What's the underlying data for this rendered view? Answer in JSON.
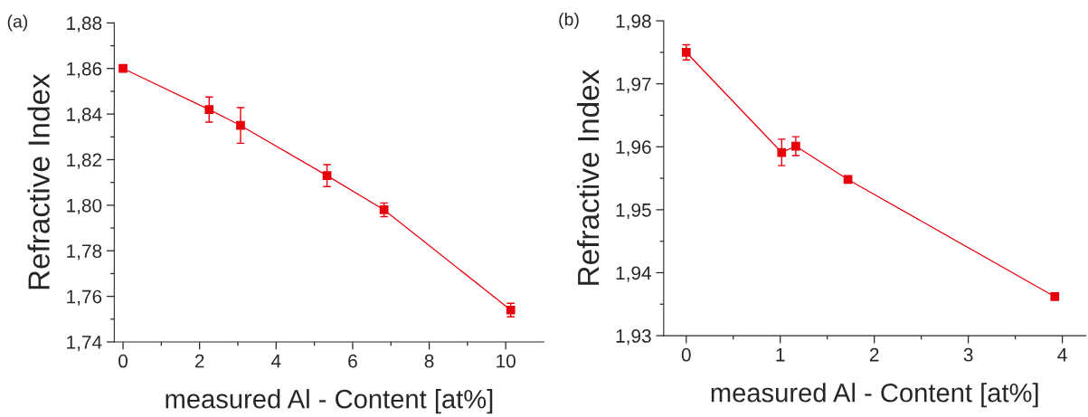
{
  "chart_data": [
    {
      "type": "line",
      "title": "(a)",
      "xlabel": "measured Al - Content [at%]",
      "ylabel": "Refractive Index",
      "marker": "square",
      "line_style": "solid",
      "grid": false,
      "legend": false,
      "series": [
        {
          "color": "#e8000b",
          "x": [
            0,
            2.25,
            3.07,
            5.33,
            6.82,
            10.13
          ],
          "values": [
            1.86,
            1.842,
            1.835,
            1.813,
            1.798,
            1.754
          ],
          "errors": [
            0.001,
            0.0055,
            0.0078,
            0.0048,
            0.003,
            0.003
          ]
        }
      ],
      "xlim": [
        -0.23,
        11.0
      ],
      "xticks": [
        0,
        2,
        4,
        6,
        8,
        10
      ],
      "ylim": [
        1.74,
        1.88
      ],
      "yticks": [
        {
          "value": 1.74,
          "label": "1,74"
        },
        {
          "value": 1.76,
          "label": "1,76"
        },
        {
          "value": 1.78,
          "label": "1,78"
        },
        {
          "value": 1.8,
          "label": "1,80"
        },
        {
          "value": 1.82,
          "label": "1,82"
        },
        {
          "value": 1.84,
          "label": "1,84"
        },
        {
          "value": 1.86,
          "label": "1,86"
        },
        {
          "value": 1.88,
          "label": "1,88"
        }
      ]
    },
    {
      "type": "line",
      "title": "(b)",
      "xlabel": "measured Al - Content [at%]",
      "ylabel": "Refractive Index",
      "marker": "square",
      "line_style": "solid",
      "grid": false,
      "legend": false,
      "series": [
        {
          "color": "#e8000b",
          "x": [
            0,
            1.015,
            1.165,
            1.72,
            3.92
          ],
          "values": [
            1.975,
            1.9591,
            1.9601,
            1.9548,
            1.9362
          ],
          "errors": [
            0.0012,
            0.0021,
            0.0015,
            null,
            null
          ]
        }
      ],
      "xlim": [
        -0.24,
        4.25
      ],
      "xticks": [
        0,
        1,
        2,
        3,
        4
      ],
      "ylim": [
        1.93,
        1.98
      ],
      "yticks": [
        {
          "value": 1.93,
          "label": "1,93"
        },
        {
          "value": 1.94,
          "label": "1,94"
        },
        {
          "value": 1.95,
          "label": "1,95"
        },
        {
          "value": 1.96,
          "label": "1,96"
        },
        {
          "value": 1.97,
          "label": "1,97"
        },
        {
          "value": 1.98,
          "label": "1,98"
        }
      ]
    }
  ]
}
